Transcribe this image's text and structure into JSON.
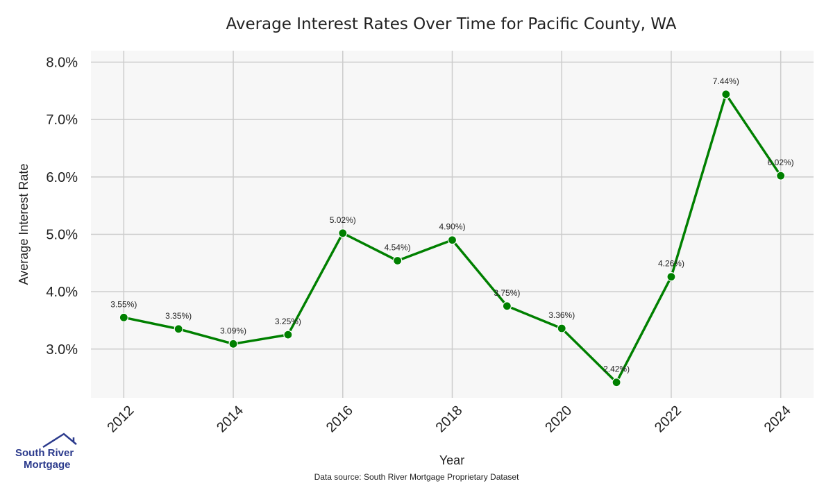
{
  "chart_data": {
    "type": "line",
    "title": "Average Interest Rates Over Time for Pacific County, WA",
    "xlabel": "Year",
    "ylabel": "Average Interest Rate",
    "x": [
      2012,
      2013,
      2014,
      2015,
      2016,
      2017,
      2018,
      2019,
      2020,
      2021,
      2022,
      2023,
      2024
    ],
    "values": [
      3.55,
      3.35,
      3.09,
      3.25,
      5.02,
      4.54,
      4.9,
      3.75,
      3.36,
      2.42,
      4.26,
      7.44,
      6.02
    ],
    "data_labels": [
      "3.55%)",
      "3.35%)",
      "3.09%)",
      "3.25%)",
      "5.02%)",
      "4.54%)",
      "4.90%)",
      "3.75%)",
      "3.36%)",
      "2.42%)",
      "4.26%)",
      "7.44%)",
      "6.02%)"
    ],
    "x_ticks": [
      2012,
      2014,
      2016,
      2018,
      2020,
      2022,
      2024
    ],
    "x_tick_labels": [
      "2012",
      "2014",
      "2016",
      "2018",
      "2020",
      "2022",
      "2024"
    ],
    "y_ticks": [
      3.0,
      4.0,
      5.0,
      6.0,
      7.0,
      8.0
    ],
    "y_tick_labels": [
      "3.0%",
      "4.0%",
      "5.0%",
      "6.0%",
      "7.0%",
      "8.0%"
    ],
    "xlim": [
      2011.4,
      2024.6
    ],
    "ylim": [
      2.15,
      8.2
    ],
    "grid": true,
    "line_color": "#008000",
    "plot_background": "#f7f7f7",
    "grid_color": "#cccccc"
  },
  "footer": {
    "source_note": "Data source: South River Mortgage Proprietary Dataset"
  },
  "logo": {
    "line1": "South River",
    "line2": "Mortgage",
    "color": "#2b3a8c"
  }
}
